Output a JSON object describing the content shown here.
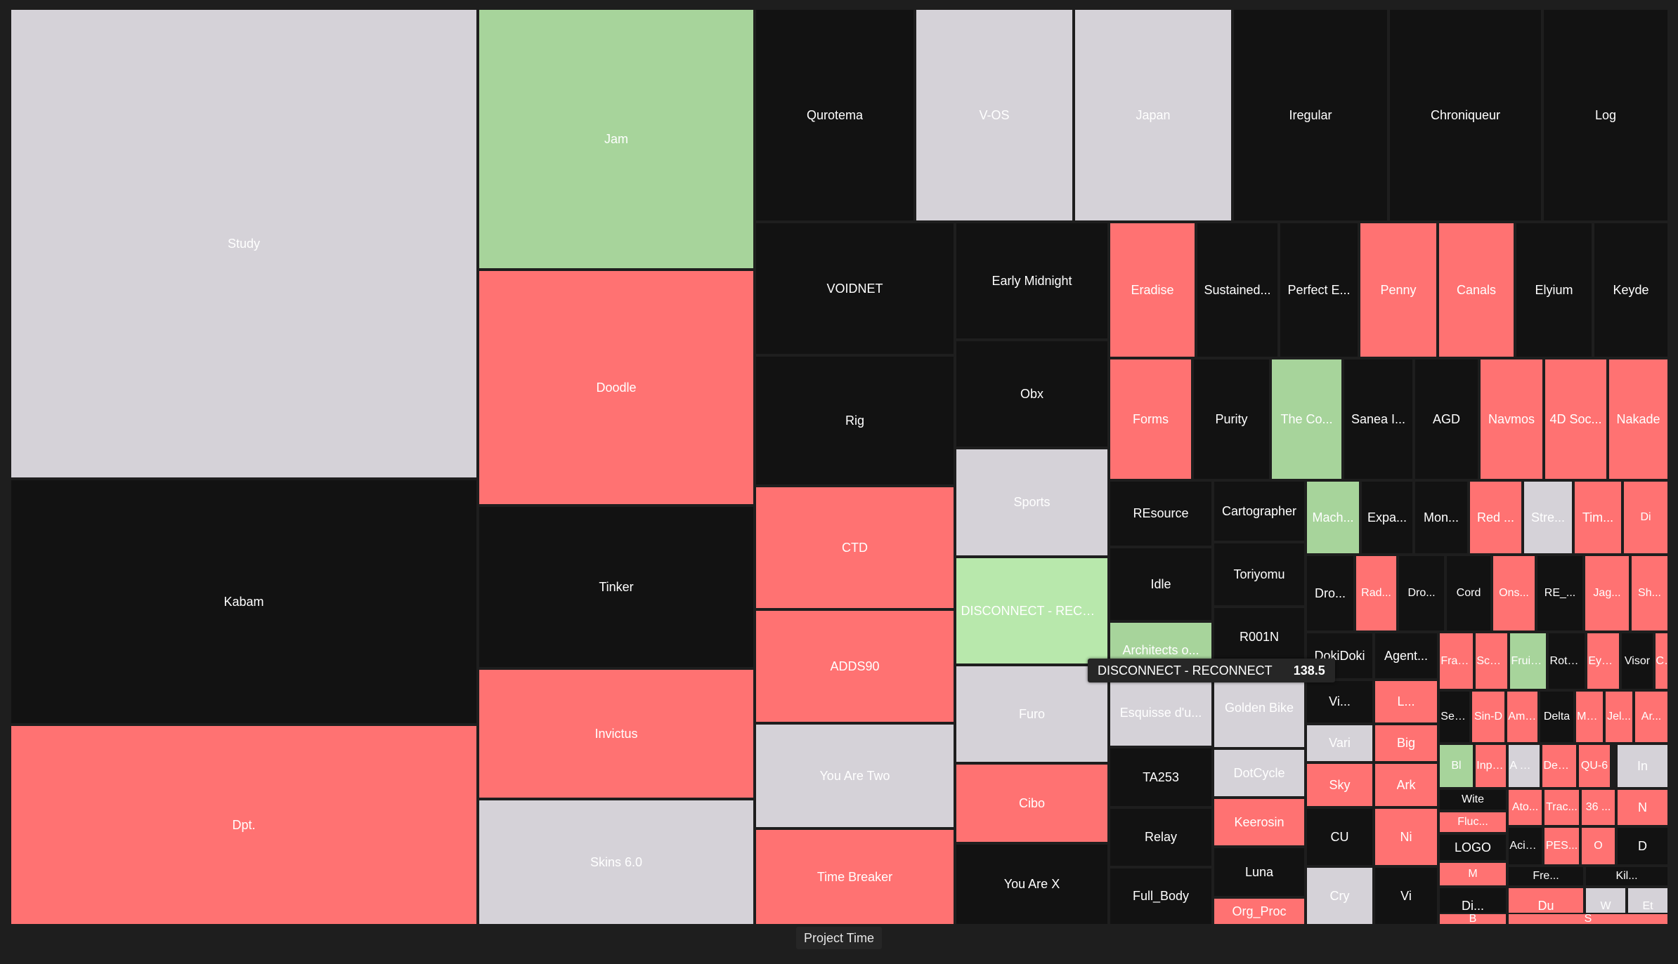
{
  "chart_data": {
    "type": "treemap",
    "xlabel": "Project Time",
    "legend": "none",
    "colors": {
      "black": "#121212",
      "grey": "#d5d2d8",
      "red": "#ff7272",
      "green": "#a7d49b",
      "light_green": "#b8e8ac",
      "background": "#1e1e1e"
    },
    "tooltip": {
      "label": "DISCONNECT - RECONNECT",
      "value": "138.5"
    },
    "cells": [
      {
        "label": "Study",
        "color": "grey"
      },
      {
        "label": "Kabam",
        "color": "black"
      },
      {
        "label": "Dpt.",
        "color": "red"
      },
      {
        "label": "Jam",
        "color": "green"
      },
      {
        "label": "Doodle",
        "color": "red"
      },
      {
        "label": "Tinker",
        "color": "black"
      },
      {
        "label": "Invictus",
        "color": "red"
      },
      {
        "label": "Skins 6.0",
        "color": "grey"
      },
      {
        "label": "Qurotema",
        "color": "black"
      },
      {
        "label": "V-OS",
        "color": "grey"
      },
      {
        "label": "Japan",
        "color": "grey"
      },
      {
        "label": "Iregular",
        "color": "black"
      },
      {
        "label": "Chroniqueur",
        "color": "black"
      },
      {
        "label": "Log",
        "color": "black"
      },
      {
        "label": "VOIDNET",
        "color": "black"
      },
      {
        "label": "Rig",
        "color": "black"
      },
      {
        "label": "CTD",
        "color": "red"
      },
      {
        "label": "ADDS90",
        "color": "red"
      },
      {
        "label": "You Are Two",
        "color": "grey"
      },
      {
        "label": "Time Breaker",
        "color": "red"
      },
      {
        "label": "Early Midnight",
        "color": "black"
      },
      {
        "label": "Obx",
        "color": "black"
      },
      {
        "label": "Sports",
        "color": "grey"
      },
      {
        "label": "DISCONNECT - RECON...",
        "color": "light_green"
      },
      {
        "label": "Furo",
        "color": "grey"
      },
      {
        "label": "Cibo",
        "color": "red"
      },
      {
        "label": "You Are X",
        "color": "black"
      },
      {
        "label": "Eradise",
        "color": "red"
      },
      {
        "label": "Sustained...",
        "color": "black"
      },
      {
        "label": "Perfect E...",
        "color": "black"
      },
      {
        "label": "Penny",
        "color": "red"
      },
      {
        "label": "Canals",
        "color": "red"
      },
      {
        "label": "Elyium",
        "color": "black"
      },
      {
        "label": "Keyde",
        "color": "black"
      },
      {
        "label": "Forms",
        "color": "red"
      },
      {
        "label": "Purity",
        "color": "black"
      },
      {
        "label": "The Co...",
        "color": "green"
      },
      {
        "label": "Sanea I...",
        "color": "black"
      },
      {
        "label": "AGD",
        "color": "black"
      },
      {
        "label": "Navmos",
        "color": "red"
      },
      {
        "label": "4D Soc...",
        "color": "red"
      },
      {
        "label": "Nakade",
        "color": "red"
      },
      {
        "label": "REsource",
        "color": "black"
      },
      {
        "label": "Idle",
        "color": "black"
      },
      {
        "label": "Architects o...",
        "color": "green"
      },
      {
        "label": "Esquisse d'u...",
        "color": "grey"
      },
      {
        "label": "TA253",
        "color": "black"
      },
      {
        "label": "Relay",
        "color": "black"
      },
      {
        "label": "Full_Body",
        "color": "black"
      },
      {
        "label": "Cartographer",
        "color": "black"
      },
      {
        "label": "Toriyomu",
        "color": "black"
      },
      {
        "label": "R001N",
        "color": "black"
      },
      {
        "label": "Golden Bike",
        "color": "grey"
      },
      {
        "label": "DotCycle",
        "color": "grey"
      },
      {
        "label": "Keerosin",
        "color": "red"
      },
      {
        "label": "Luna",
        "color": "black"
      },
      {
        "label": "Org_Proc",
        "color": "red"
      },
      {
        "label": "Mach...",
        "color": "green"
      },
      {
        "label": "Expa...",
        "color": "black"
      },
      {
        "label": "Mon...",
        "color": "black"
      },
      {
        "label": "Red ...",
        "color": "red"
      },
      {
        "label": "Stre...",
        "color": "grey"
      },
      {
        "label": "Tim...",
        "color": "red"
      },
      {
        "label": "Di",
        "color": "red"
      },
      {
        "label": "Dro...",
        "color": "black"
      },
      {
        "label": "Rad...",
        "color": "red"
      },
      {
        "label": "Dro...",
        "color": "black"
      },
      {
        "label": "Cord",
        "color": "black"
      },
      {
        "label": "Ons...",
        "color": "red"
      },
      {
        "label": "RE_...",
        "color": "black"
      },
      {
        "label": "Jag...",
        "color": "red"
      },
      {
        "label": "Sh...",
        "color": "red"
      },
      {
        "label": "DokiDoki",
        "color": "black"
      },
      {
        "label": "Agent...",
        "color": "black"
      },
      {
        "label": "Fracas",
        "color": "red"
      },
      {
        "label": "ScanDi...",
        "color": "red"
      },
      {
        "label": "Fruits ...",
        "color": "green"
      },
      {
        "label": "Rotonde",
        "color": "black"
      },
      {
        "label": "Eyebat",
        "color": "red"
      },
      {
        "label": "Visor",
        "color": "black"
      },
      {
        "label": "Chimera",
        "color": "red"
      },
      {
        "label": "Seven",
        "color": "black"
      },
      {
        "label": "Sin-D",
        "color": "red"
      },
      {
        "label": "Amis ...",
        "color": "red"
      },
      {
        "label": "Delta",
        "color": "black"
      },
      {
        "label": "Moré",
        "color": "red"
      },
      {
        "label": "Jel...",
        "color": "red"
      },
      {
        "label": "Ar...",
        "color": "red"
      },
      {
        "label": "Vi...",
        "color": "black"
      },
      {
        "label": "L...",
        "color": "red"
      },
      {
        "label": "Vari",
        "color": "grey"
      },
      {
        "label": "Big",
        "color": "red"
      },
      {
        "label": "Sky",
        "color": "red"
      },
      {
        "label": "Ark",
        "color": "red"
      },
      {
        "label": "CU",
        "color": "black"
      },
      {
        "label": "Ni",
        "color": "red"
      },
      {
        "label": "Cry",
        "color": "grey"
      },
      {
        "label": "Vi",
        "color": "black"
      },
      {
        "label": "Bl",
        "color": "green"
      },
      {
        "label": "Input...",
        "color": "red"
      },
      {
        "label": "A Dr...",
        "color": "grey"
      },
      {
        "label": "Dent...",
        "color": "red"
      },
      {
        "label": "QU-6",
        "color": "red"
      },
      {
        "label": "Wite",
        "color": "black"
      },
      {
        "label": "Fluc...",
        "color": "red"
      },
      {
        "label": "LOGO",
        "color": "black"
      },
      {
        "label": "Ato...",
        "color": "red"
      },
      {
        "label": "Trac...",
        "color": "red"
      },
      {
        "label": "36 ...",
        "color": "red"
      },
      {
        "label": "Acid ...",
        "color": "black"
      },
      {
        "label": "PES...",
        "color": "red"
      },
      {
        "label": "O",
        "color": "red"
      },
      {
        "label": "In",
        "color": "grey"
      },
      {
        "label": "N",
        "color": "red"
      },
      {
        "label": "D",
        "color": "black"
      },
      {
        "label": "M",
        "color": "red"
      },
      {
        "label": "Fre...",
        "color": "black"
      },
      {
        "label": "Kil...",
        "color": "black"
      },
      {
        "label": "Di...",
        "color": "black"
      },
      {
        "label": "Du",
        "color": "red"
      },
      {
        "label": "W",
        "color": "grey"
      },
      {
        "label": "Et",
        "color": "grey"
      },
      {
        "label": "S",
        "color": "red"
      },
      {
        "label": "B",
        "color": "red"
      },
      {
        "label": "",
        "color": "red"
      },
      {
        "label": "",
        "color": "red"
      },
      {
        "label": "",
        "color": "red"
      },
      {
        "label": "",
        "color": "red"
      },
      {
        "label": "",
        "color": "red"
      },
      {
        "label": "",
        "color": "black"
      },
      {
        "label": "",
        "color": "black"
      },
      {
        "label": "",
        "color": "grey"
      },
      {
        "label": "",
        "color": "green"
      },
      {
        "label": "",
        "color": "red"
      },
      {
        "label": "",
        "color": "grey"
      },
      {
        "label": "",
        "color": "grey"
      },
      {
        "label": "",
        "color": "red"
      }
    ]
  }
}
